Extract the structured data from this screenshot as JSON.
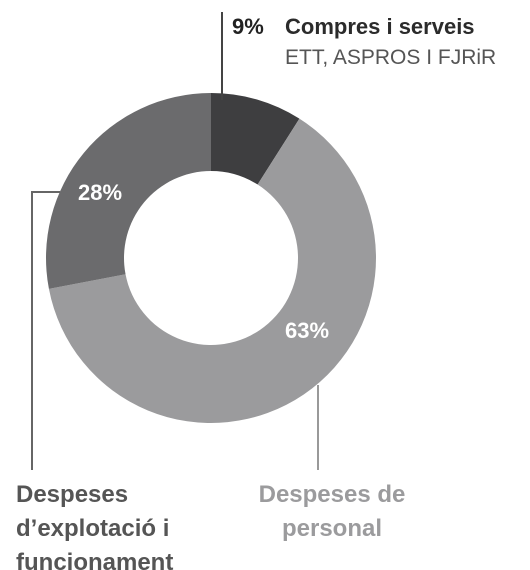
{
  "chart_data": {
    "type": "donut",
    "categories": [
      "Compres i serveis",
      "Despeses de personal",
      "Despeses d’explotació i funcionament"
    ],
    "values": [
      9,
      63,
      28
    ],
    "value_labels": [
      "9%",
      "63%",
      "28%"
    ],
    "colors": [
      "#3e3e40",
      "#9b9b9d",
      "#6b6b6d"
    ],
    "annotation": "ETT, ASPROS I FJRiR"
  }
}
